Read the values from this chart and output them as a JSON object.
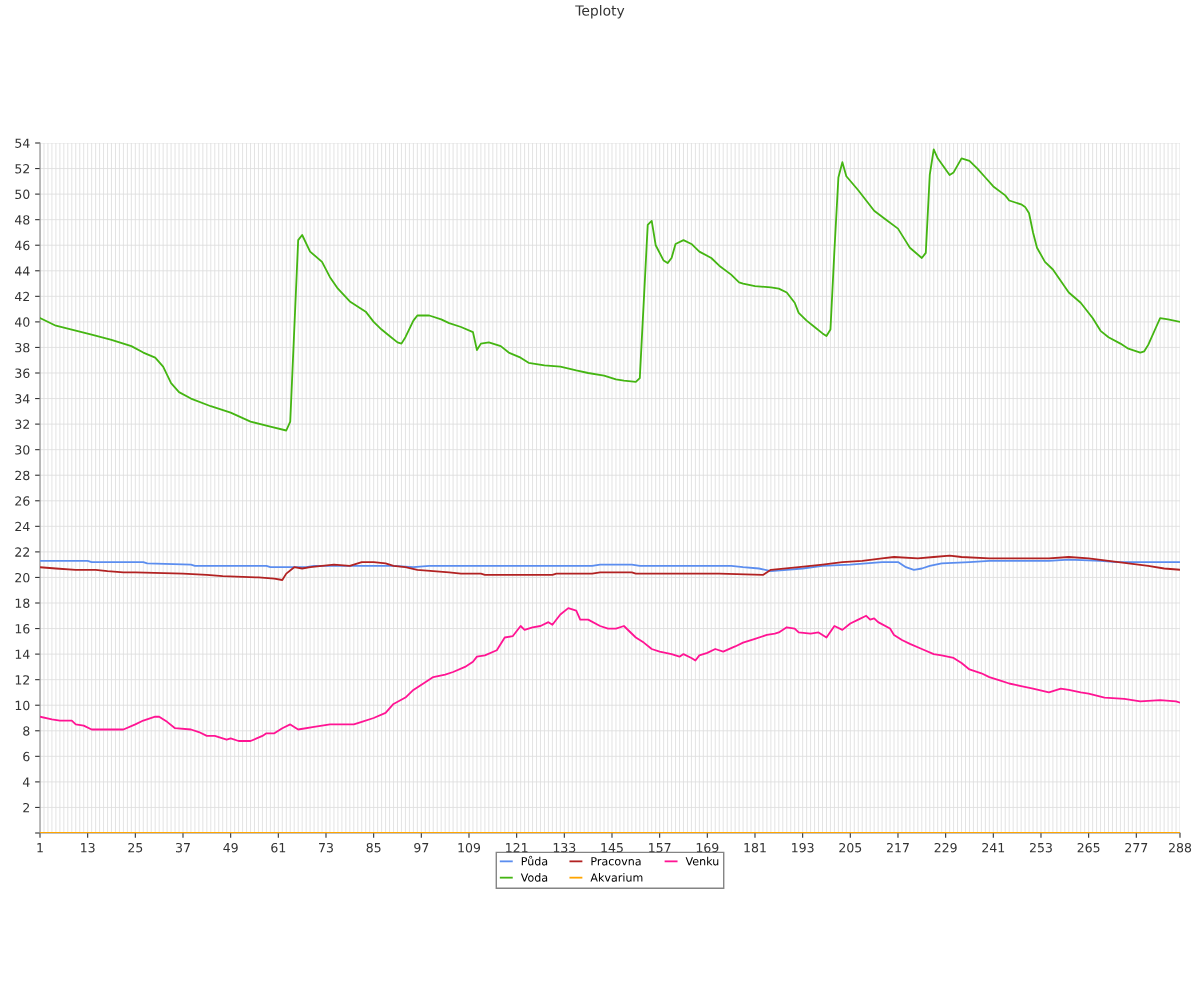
{
  "chart_data": {
    "type": "line",
    "title": "Teploty",
    "xlim": [
      1,
      288
    ],
    "ylim": [
      0,
      54
    ],
    "yticks": [
      {
        "value": 0,
        "label": null
      },
      2,
      4,
      6,
      8,
      10,
      12,
      14,
      16,
      18,
      20,
      22,
      24,
      26,
      28,
      30,
      32,
      34,
      36,
      38,
      40,
      42,
      44,
      46,
      48,
      50,
      52,
      54
    ],
    "xticks": [
      1,
      13,
      25,
      37,
      49,
      61,
      73,
      85,
      97,
      109,
      121,
      133,
      145,
      157,
      169,
      181,
      193,
      205,
      217,
      229,
      241,
      253,
      265,
      277,
      288
    ],
    "grid": true,
    "legend": "bottom",
    "marker": "none",
    "line_style": "solid",
    "series": [
      {
        "name": "Půda",
        "color": "#5b8def",
        "x": [
          1,
          13,
          14,
          27,
          28,
          39,
          40,
          58,
          59,
          68,
          70,
          86,
          90,
          95,
          99,
          140,
          142,
          150,
          152,
          175,
          178,
          182,
          185,
          189,
          193,
          198,
          205,
          213,
          217,
          219,
          221,
          223,
          225,
          228,
          235,
          240,
          255,
          260,
          268,
          272,
          288
        ],
        "values": [
          21.3,
          21.3,
          21.2,
          21.2,
          21.1,
          21.0,
          20.9,
          20.9,
          20.8,
          20.8,
          20.9,
          20.9,
          20.9,
          20.8,
          20.9,
          20.9,
          21.0,
          21.0,
          20.9,
          20.9,
          20.8,
          20.7,
          20.5,
          20.6,
          20.7,
          20.9,
          21.0,
          21.2,
          21.2,
          20.8,
          20.6,
          20.7,
          20.9,
          21.1,
          21.2,
          21.3,
          21.3,
          21.4,
          21.3,
          21.2,
          21.2
        ]
      },
      {
        "name": "Voda",
        "color": "#44b512",
        "x": [
          1,
          5,
          9,
          14,
          19,
          24,
          27,
          30,
          32,
          34,
          36,
          39,
          44,
          49,
          54,
          59,
          63,
          64,
          66,
          67,
          69,
          72,
          74,
          76,
          79,
          83,
          85,
          87,
          89,
          91,
          92,
          93,
          95,
          96,
          99,
          102,
          104,
          107,
          110,
          111,
          112,
          114,
          117,
          119,
          122,
          124,
          128,
          132,
          136,
          139,
          143,
          146,
          148,
          151,
          152,
          154,
          155,
          156,
          158,
          159,
          160,
          161,
          163,
          165,
          167,
          170,
          172,
          175,
          177,
          178,
          181,
          185,
          187,
          189,
          191,
          192,
          194,
          196,
          198,
          199,
          200,
          201,
          202,
          203,
          204,
          207,
          209,
          211,
          214,
          217,
          219,
          220,
          223,
          224,
          225,
          226,
          227,
          230,
          231,
          233,
          235,
          237,
          239,
          241,
          244,
          245,
          248,
          249,
          250,
          251,
          252,
          254,
          256,
          258,
          260,
          263,
          266,
          268,
          270,
          273,
          275,
          278,
          279,
          280,
          282,
          283,
          285,
          288
        ],
        "values": [
          40.3,
          39.7,
          39.4,
          39.0,
          38.6,
          38.1,
          37.6,
          37.2,
          36.5,
          35.2,
          34.5,
          34.0,
          33.4,
          32.9,
          32.2,
          31.8,
          31.5,
          32.2,
          46.4,
          46.8,
          45.5,
          44.7,
          43.5,
          42.6,
          41.6,
          40.8,
          40.0,
          39.4,
          38.9,
          38.4,
          38.3,
          38.8,
          40.1,
          40.5,
          40.5,
          40.2,
          39.9,
          39.6,
          39.2,
          37.8,
          38.3,
          38.4,
          38.1,
          37.6,
          37.2,
          36.8,
          36.6,
          36.5,
          36.2,
          36.0,
          35.8,
          35.5,
          35.4,
          35.3,
          35.6,
          47.6,
          47.9,
          46.0,
          44.8,
          44.6,
          45.0,
          46.1,
          46.4,
          46.1,
          45.5,
          45.0,
          44.4,
          43.7,
          43.1,
          43.0,
          42.8,
          42.7,
          42.6,
          42.3,
          41.5,
          40.7,
          40.1,
          39.6,
          39.1,
          38.9,
          39.4,
          45.6,
          51.3,
          52.5,
          51.4,
          50.3,
          49.5,
          48.7,
          48.0,
          47.3,
          46.3,
          45.8,
          45.0,
          45.4,
          51.5,
          53.5,
          52.8,
          51.5,
          51.7,
          52.8,
          52.6,
          52.0,
          51.3,
          50.6,
          49.9,
          49.5,
          49.2,
          49.0,
          48.5,
          47.0,
          45.8,
          44.7,
          44.1,
          43.2,
          42.3,
          41.5,
          40.3,
          39.3,
          38.8,
          38.3,
          37.9,
          37.6,
          37.7,
          38.2,
          39.6,
          40.3,
          40.2,
          40.0
        ]
      },
      {
        "name": "Pracovna",
        "color": "#b22222",
        "x": [
          1,
          5,
          10,
          15,
          18,
          22,
          25,
          37,
          43,
          47,
          56,
          60,
          62,
          63,
          65,
          67,
          69,
          72,
          75,
          79,
          80,
          82,
          85,
          88,
          90,
          93,
          96,
          100,
          104,
          107,
          112,
          113,
          130,
          131,
          140,
          142,
          150,
          151,
          172,
          183,
          185,
          192,
          198,
          203,
          208,
          213,
          216,
          222,
          226,
          230,
          233,
          240,
          255,
          260,
          265,
          270,
          275,
          280,
          284,
          288
        ],
        "values": [
          20.8,
          20.7,
          20.6,
          20.6,
          20.5,
          20.4,
          20.4,
          20.3,
          20.2,
          20.1,
          20.0,
          19.9,
          19.8,
          20.3,
          20.8,
          20.7,
          20.8,
          20.9,
          21.0,
          20.9,
          21.0,
          21.2,
          21.2,
          21.1,
          20.9,
          20.8,
          20.6,
          20.5,
          20.4,
          20.3,
          20.3,
          20.2,
          20.2,
          20.3,
          20.3,
          20.4,
          20.4,
          20.3,
          20.3,
          20.2,
          20.6,
          20.8,
          21.0,
          21.2,
          21.3,
          21.5,
          21.6,
          21.5,
          21.6,
          21.7,
          21.6,
          21.5,
          21.5,
          21.6,
          21.5,
          21.3,
          21.1,
          20.9,
          20.7,
          20.6
        ]
      },
      {
        "name": "Akvarium",
        "color": "#ffa500",
        "x": [
          1,
          288
        ],
        "values": [
          0,
          0
        ]
      },
      {
        "name": "Venku",
        "color": "#ff1493",
        "x": [
          1,
          4,
          6,
          9,
          10,
          12,
          14,
          16,
          19,
          22,
          25,
          27,
          30,
          31,
          33,
          35,
          39,
          41,
          43,
          45,
          48,
          49,
          51,
          54,
          57,
          58,
          60,
          62,
          64,
          66,
          70,
          74,
          80,
          82,
          85,
          88,
          90,
          93,
          95,
          98,
          100,
          103,
          105,
          108,
          110,
          111,
          113,
          116,
          118,
          120,
          122,
          123,
          125,
          127,
          129,
          130,
          132,
          134,
          136,
          137,
          139,
          142,
          144,
          146,
          148,
          151,
          153,
          155,
          157,
          160,
          162,
          163,
          165,
          166,
          167,
          169,
          171,
          173,
          176,
          178,
          181,
          184,
          186,
          187,
          189,
          191,
          192,
          195,
          197,
          199,
          201,
          203,
          205,
          207,
          209,
          210,
          211,
          212,
          215,
          216,
          218,
          220,
          223,
          226,
          228,
          231,
          233,
          235,
          238,
          240,
          243,
          245,
          248,
          251,
          255,
          258,
          260,
          263,
          265,
          269,
          274,
          278,
          283,
          287,
          288
        ],
        "values": [
          9.1,
          8.9,
          8.8,
          8.8,
          8.5,
          8.4,
          8.1,
          8.1,
          8.1,
          8.1,
          8.5,
          8.8,
          9.1,
          9.1,
          8.7,
          8.2,
          8.1,
          7.9,
          7.6,
          7.6,
          7.3,
          7.4,
          7.2,
          7.2,
          7.6,
          7.8,
          7.8,
          8.2,
          8.5,
          8.1,
          8.3,
          8.5,
          8.5,
          8.7,
          9.0,
          9.4,
          10.1,
          10.6,
          11.2,
          11.8,
          12.2,
          12.4,
          12.6,
          13.0,
          13.4,
          13.8,
          13.9,
          14.3,
          15.3,
          15.4,
          16.2,
          15.9,
          16.1,
          16.2,
          16.5,
          16.3,
          17.1,
          17.6,
          17.4,
          16.7,
          16.7,
          16.2,
          16.0,
          16.0,
          16.2,
          15.3,
          14.9,
          14.4,
          14.2,
          14.0,
          13.8,
          14.0,
          13.7,
          13.5,
          13.9,
          14.1,
          14.4,
          14.2,
          14.6,
          14.9,
          15.2,
          15.5,
          15.6,
          15.7,
          16.1,
          16.0,
          15.7,
          15.6,
          15.7,
          15.3,
          16.2,
          15.9,
          16.4,
          16.7,
          17.0,
          16.7,
          16.8,
          16.5,
          16.0,
          15.5,
          15.1,
          14.8,
          14.4,
          14.0,
          13.9,
          13.7,
          13.3,
          12.8,
          12.5,
          12.2,
          11.9,
          11.7,
          11.5,
          11.3,
          11.0,
          11.3,
          11.2,
          11.0,
          10.9,
          10.6,
          10.5,
          10.3,
          10.4,
          10.3,
          10.2
        ]
      }
    ]
  }
}
